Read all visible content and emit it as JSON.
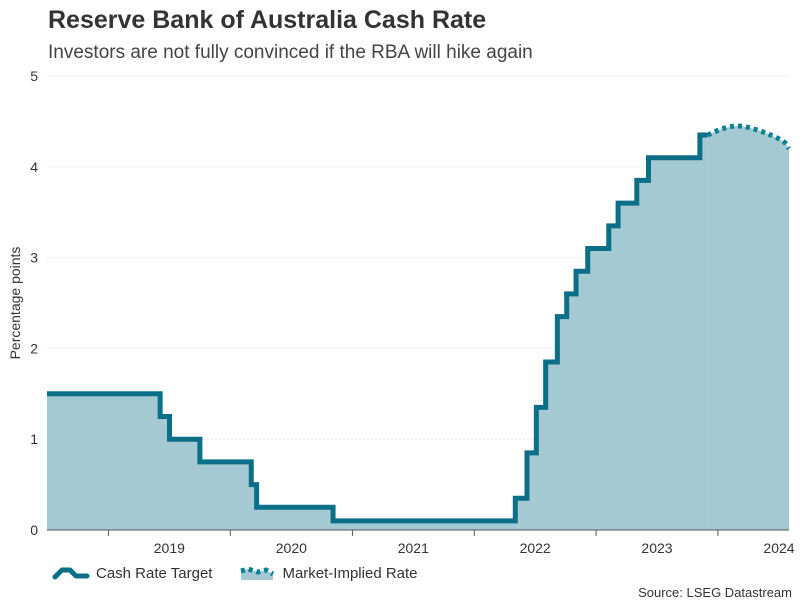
{
  "header": {
    "title": "Reserve Bank of Australia Cash Rate",
    "subtitle": "Investors are not fully convinced if the RBA will hike again"
  },
  "footer": {
    "source": "Source: LSEG Datastream"
  },
  "colors": {
    "line": "#0b6f88",
    "fill": "#a4c9d3",
    "dotted": "#0b7f96",
    "grid": "#e6e6e6",
    "axis": "#555555"
  },
  "chart_data": {
    "type": "area",
    "title": "Reserve Bank of Australia Cash Rate",
    "ylabel": "Percentage points",
    "xlabel": "",
    "ylim": [
      0,
      5
    ],
    "yticks": [
      0,
      1,
      2,
      3,
      4,
      5
    ],
    "xlim": [
      "2018-07-01",
      "2024-08-01"
    ],
    "xticks": [
      "2019",
      "2020",
      "2021",
      "2022",
      "2023",
      "2024"
    ],
    "grid": true,
    "legend": "bottom-left",
    "series": [
      {
        "name": "Cash Rate Target",
        "style": "step",
        "points": [
          [
            "2018-07-01",
            1.5
          ],
          [
            "2019-06-05",
            1.25
          ],
          [
            "2019-07-03",
            1.0
          ],
          [
            "2019-10-02",
            0.75
          ],
          [
            "2020-03-04",
            0.5
          ],
          [
            "2020-03-20",
            0.25
          ],
          [
            "2020-11-04",
            0.1
          ],
          [
            "2022-05-04",
            0.35
          ],
          [
            "2022-06-08",
            0.85
          ],
          [
            "2022-07-06",
            1.35
          ],
          [
            "2022-08-03",
            1.85
          ],
          [
            "2022-09-07",
            2.35
          ],
          [
            "2022-10-05",
            2.6
          ],
          [
            "2022-11-02",
            2.85
          ],
          [
            "2022-12-07",
            3.1
          ],
          [
            "2023-02-08",
            3.35
          ],
          [
            "2023-03-08",
            3.6
          ],
          [
            "2023-05-03",
            3.85
          ],
          [
            "2023-06-07",
            4.1
          ],
          [
            "2023-11-08",
            4.35
          ],
          [
            "2023-12-01",
            4.35
          ]
        ]
      },
      {
        "name": "Market-Implied Rate",
        "style": "dotted",
        "points": [
          [
            "2023-12-01",
            4.35
          ],
          [
            "2024-01-15",
            4.42
          ],
          [
            "2024-03-01",
            4.45
          ],
          [
            "2024-04-15",
            4.42
          ],
          [
            "2024-06-01",
            4.36
          ],
          [
            "2024-07-15",
            4.28
          ],
          [
            "2024-08-01",
            4.2
          ]
        ]
      }
    ]
  }
}
